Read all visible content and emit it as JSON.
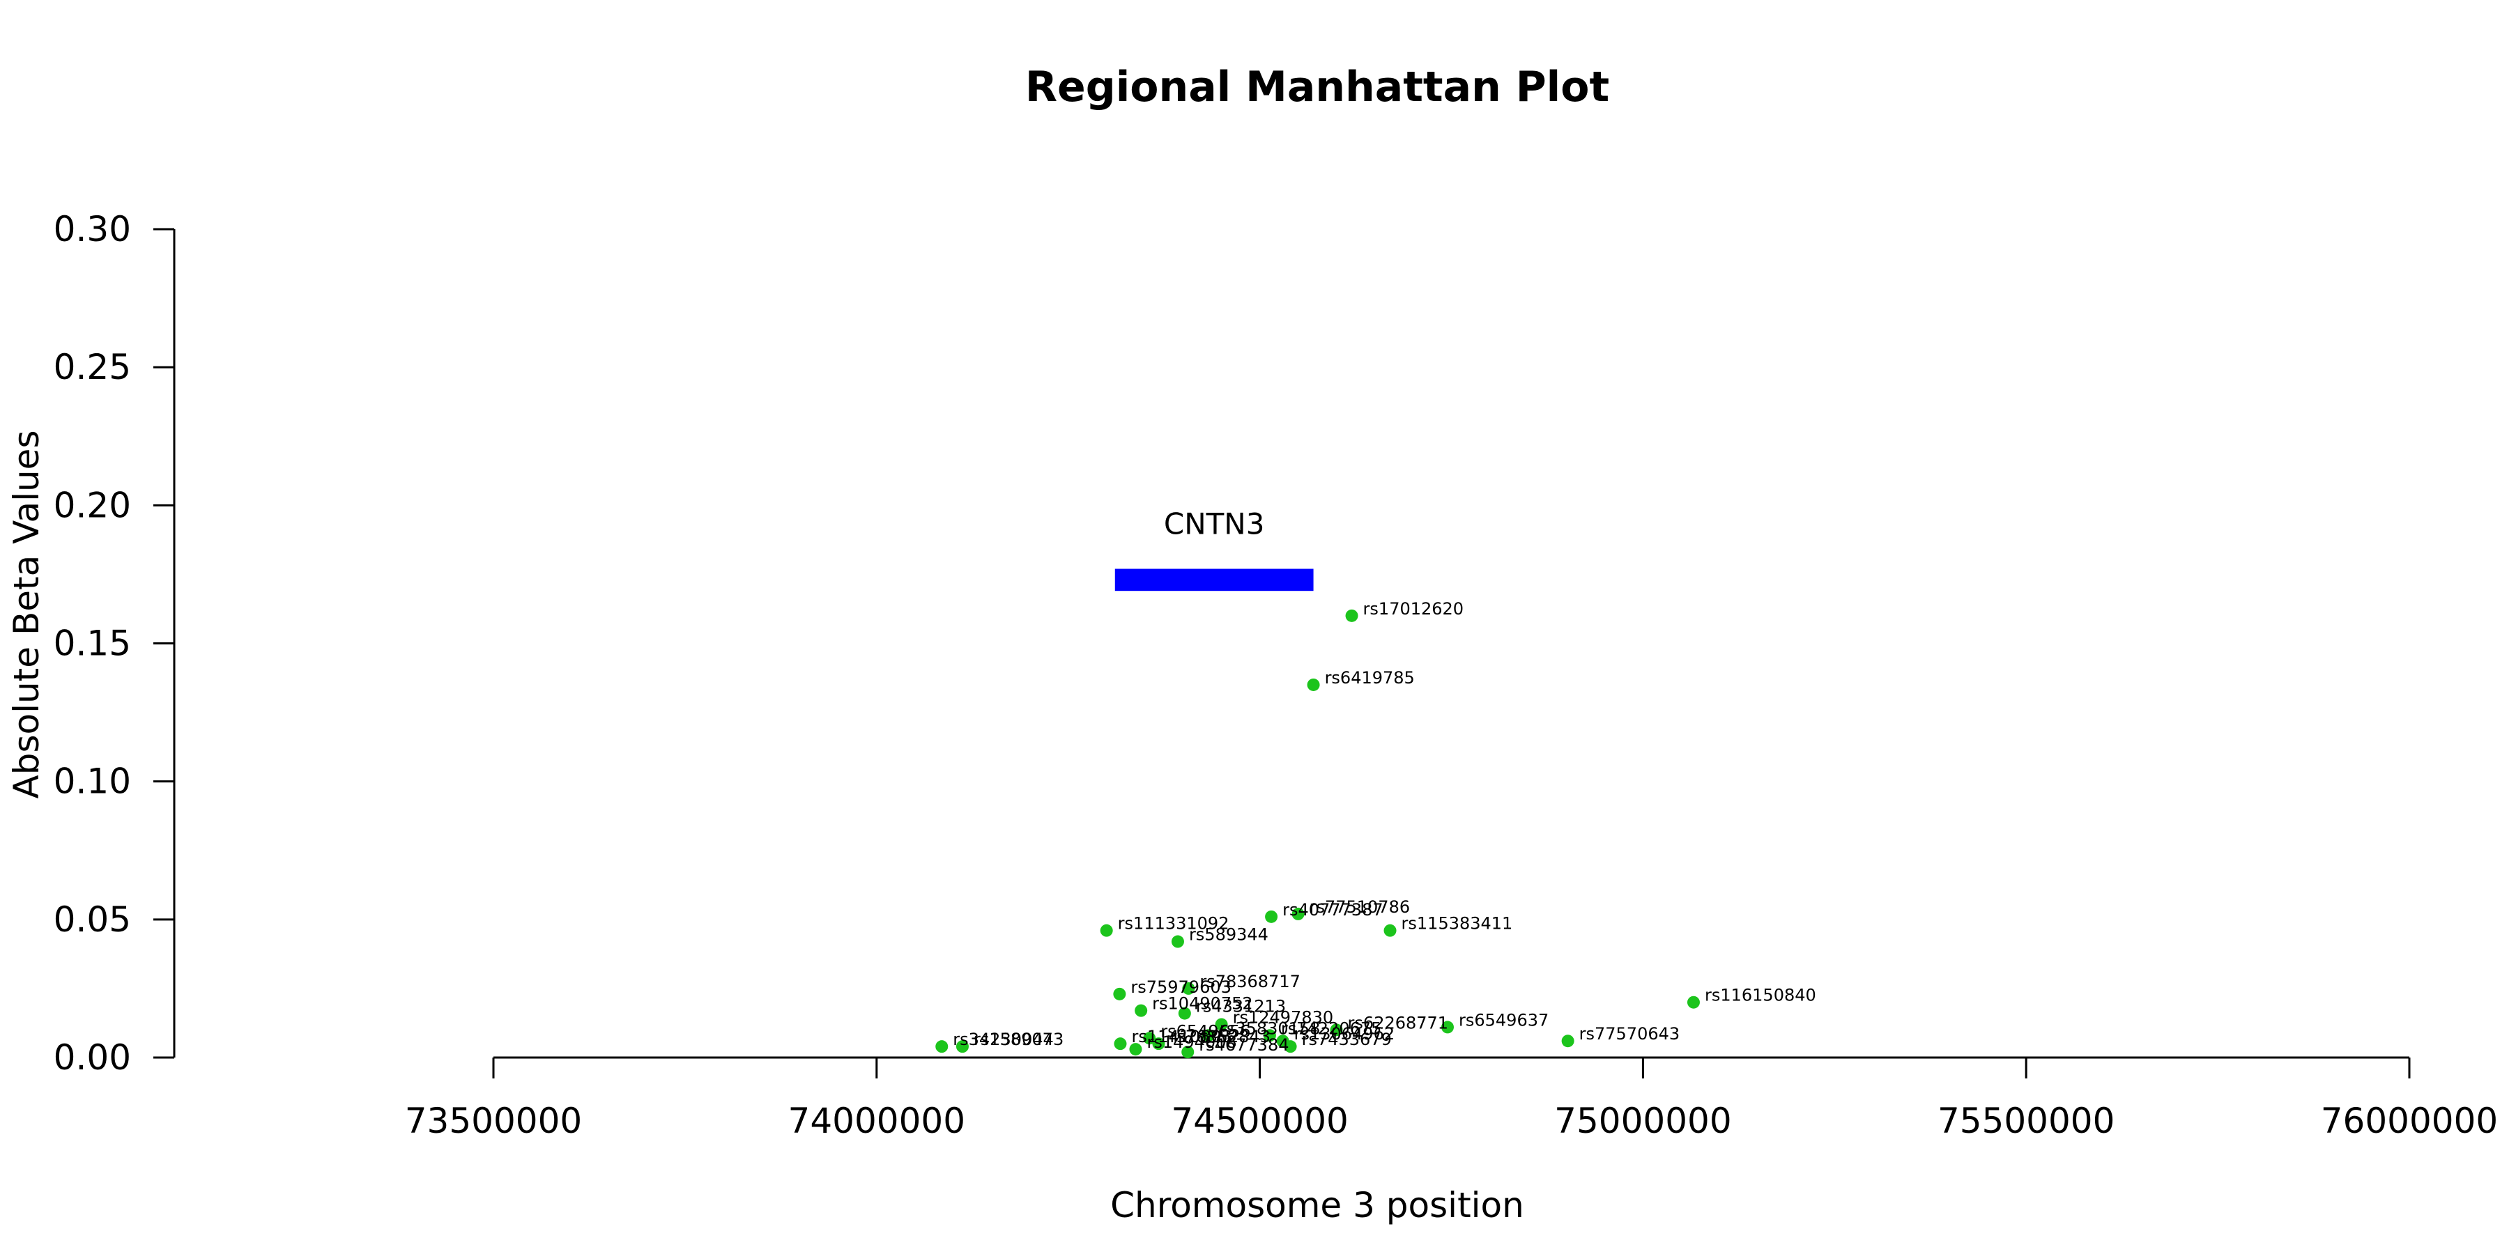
{
  "chart_data": {
    "type": "scatter",
    "title": "Regional Manhattan Plot",
    "xlabel": "Chromosome 3 position",
    "ylabel": "Absolute Beta Values",
    "xlim": [
      73500000,
      76000000
    ],
    "ylim": [
      0,
      0.3
    ],
    "x_ticks": [
      "73500000",
      "74000000",
      "74500000",
      "75000000",
      "75500000",
      "76000000"
    ],
    "y_ticks": [
      "0.00",
      "0.05",
      "0.10",
      "0.15",
      "0.20",
      "0.25",
      "0.30"
    ],
    "grid": false,
    "point_color": "#1cc41c",
    "gene_color": "#0000ff",
    "gene": {
      "name": "CNTN3",
      "start": 74311000,
      "end": 74570000,
      "y_bottom": 0.169,
      "y_top": 0.177
    },
    "points": [
      {
        "snp": "rs17012620",
        "x": 74620000,
        "y": 0.16
      },
      {
        "snp": "rs6419785",
        "x": 74570000,
        "y": 0.135
      },
      {
        "snp": "rs40777387",
        "x": 74515000,
        "y": 0.051
      },
      {
        "snp": "rs77510786",
        "x": 74550000,
        "y": 0.052
      },
      {
        "snp": "rs111331092",
        "x": 74300000,
        "y": 0.046
      },
      {
        "snp": "rs589344",
        "x": 74393000,
        "y": 0.042
      },
      {
        "snp": "rs115383411",
        "x": 74670000,
        "y": 0.046
      },
      {
        "snp": "rs75979603",
        "x": 74317000,
        "y": 0.023
      },
      {
        "snp": "rs78368717",
        "x": 74407000,
        "y": 0.025
      },
      {
        "snp": "rs116150840",
        "x": 75066000,
        "y": 0.02
      },
      {
        "snp": "rs10490752",
        "x": 74345000,
        "y": 0.017
      },
      {
        "snp": "rs4331213",
        "x": 74402000,
        "y": 0.016
      },
      {
        "snp": "rs12497830",
        "x": 74450000,
        "y": 0.012
      },
      {
        "snp": "rs62268771",
        "x": 74600000,
        "y": 0.01
      },
      {
        "snp": "rs6549637",
        "x": 74745000,
        "y": 0.011
      },
      {
        "snp": "rs74220675",
        "x": 74513000,
        "y": 0.008
      },
      {
        "snp": "rs7433679",
        "x": 74540000,
        "y": 0.004
      },
      {
        "snp": "rs77570643",
        "x": 74902000,
        "y": 0.006
      },
      {
        "snp": "rs4677384",
        "x": 74406000,
        "y": 0.002
      },
      {
        "snp": "rs34230044",
        "x": 74085000,
        "y": 0.004
      },
      {
        "snp": "rs1589073",
        "x": 74112000,
        "y": 0.004
      },
      {
        "snp": "rs11410893",
        "x": 74318000,
        "y": 0.005
      },
      {
        "snp": "rs1494008",
        "x": 74338000,
        "y": 0.003
      },
      {
        "snp": "rs6549656",
        "x": 74356000,
        "y": 0.007
      },
      {
        "snp": "rs76852843",
        "x": 74368000,
        "y": 0.005
      },
      {
        "snp": "rs35830158",
        "x": 74433000,
        "y": 0.008
      },
      {
        "snp": "rs13064962",
        "x": 74530000,
        "y": 0.006
      }
    ]
  }
}
